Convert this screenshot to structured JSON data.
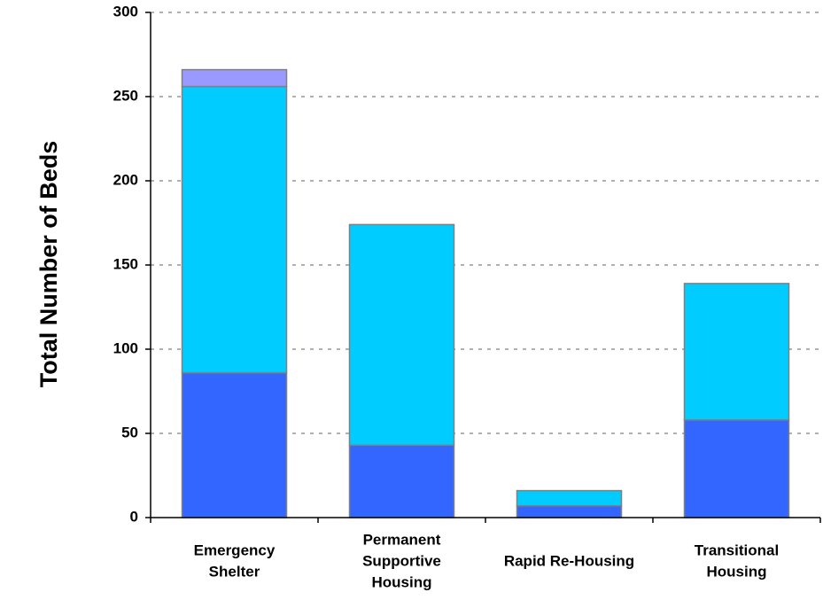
{
  "chart_data": {
    "type": "bar",
    "stacked": true,
    "title": "",
    "xlabel": "",
    "ylabel": "Total Number of Beds",
    "ylim": [
      0,
      300
    ],
    "yticks": [
      0,
      50,
      100,
      150,
      200,
      250,
      300
    ],
    "grid": true,
    "categories": [
      [
        "Emergency",
        "Shelter"
      ],
      [
        "Permanent",
        "Supportive",
        "Housing"
      ],
      [
        "Rapid Re-Housing"
      ],
      [
        "Transitional",
        "Housing"
      ]
    ],
    "series": [
      {
        "color": "#3366ff",
        "values": [
          86,
          43,
          7,
          58
        ]
      },
      {
        "color": "#00ccff",
        "values": [
          170,
          131,
          9,
          81
        ]
      },
      {
        "color": "#9999ff",
        "values": [
          10,
          0,
          0,
          0
        ]
      }
    ]
  }
}
